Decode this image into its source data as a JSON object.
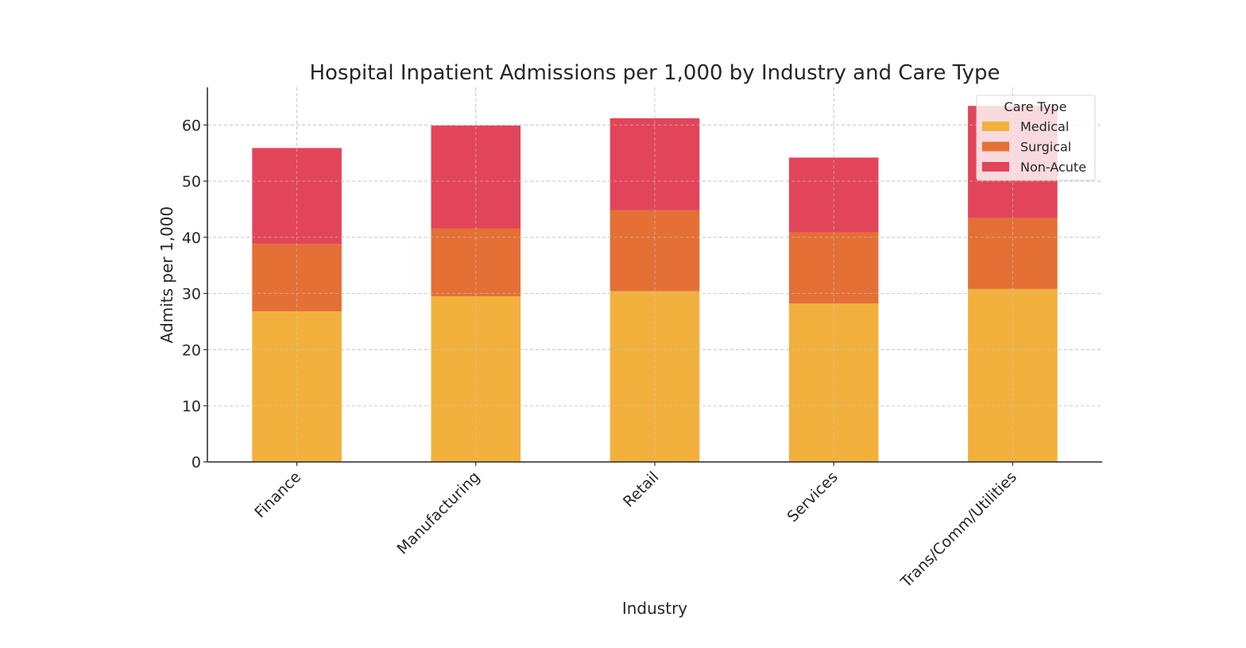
{
  "chart_data": {
    "type": "bar",
    "stacked": true,
    "title": "Hospital Inpatient Admissions per 1,000 by Industry and Care Type",
    "xlabel": "Industry",
    "ylabel": "Admits per 1,000",
    "categories": [
      "Finance",
      "Manufacturing",
      "Retail",
      "Services",
      "Trans/Comm/Utilities"
    ],
    "series": [
      {
        "name": "Medical",
        "color": "#F2B13C",
        "values": [
          26.8,
          29.5,
          30.4,
          28.2,
          30.8
        ]
      },
      {
        "name": "Surgical",
        "color": "#E47035",
        "values": [
          12.0,
          12.1,
          14.4,
          12.7,
          12.6
        ]
      },
      {
        "name": "Non-Acute",
        "color": "#E2455A",
        "values": [
          17.1,
          18.3,
          16.4,
          13.3,
          20.0
        ]
      }
    ],
    "ylim": [
      0,
      66.7
    ],
    "yticks": [
      0,
      10,
      20,
      30,
      40,
      50,
      60
    ],
    "grid": true,
    "legend": {
      "title": "Care Type",
      "placement": "top-right"
    },
    "xtick_rotation": 45
  }
}
